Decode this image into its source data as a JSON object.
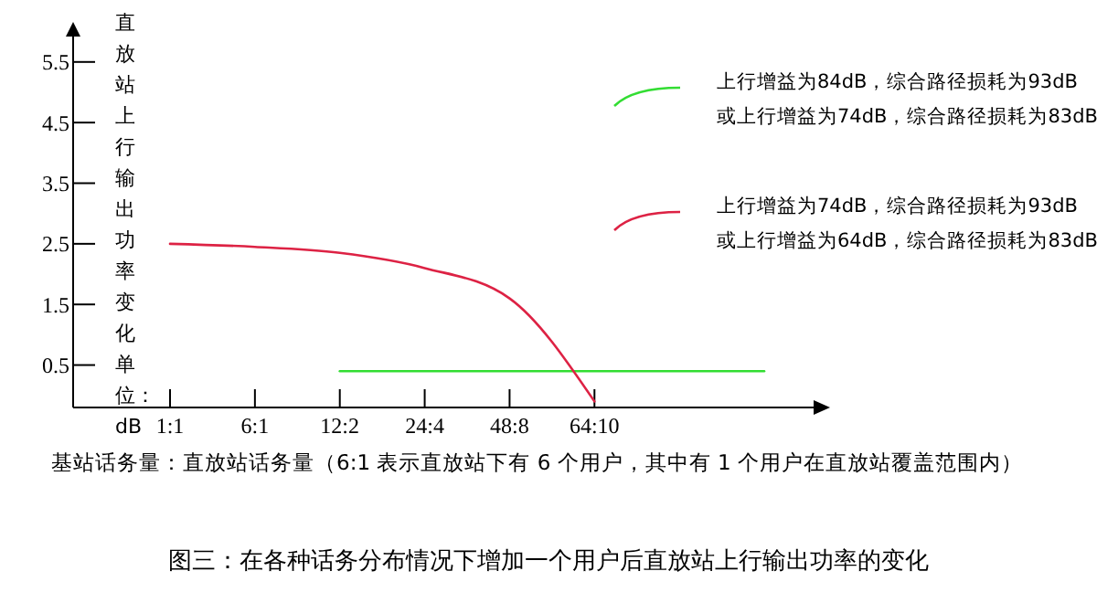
{
  "chart_data": {
    "type": "line",
    "title": "图三：在各种话务分布情况下增加一个用户后直放站上行输出功率的变化",
    "xlabel": "基站话务量：直放站话务量（6:1 表示直放站下有 6 个用户，其中有 1 个用户在直放站覆盖范围内）",
    "ylabel": "直放站上行输出功率变化单位：dB",
    "categories": [
      "1:1",
      "6:1",
      "12:2",
      "24:4",
      "48:8",
      "64:10",
      null,
      null
    ],
    "ylim": [
      -0.2,
      6.1
    ],
    "yticks": [
      5.5,
      4.5,
      3.5,
      2.5,
      1.5,
      0.5
    ],
    "series": [
      {
        "name": "上行增益为84dB，综合路径损耗为93dB\n或上行增益为74dB，综合路径损耗为83dB",
        "color": "#33dd33",
        "values": [
          null,
          null,
          0.4,
          0.4,
          0.4,
          0.4,
          0.4,
          0.4
        ]
      },
      {
        "name": "上行增益为74dB，综合路径损耗为93dB\n或上行增益为64dB，综合路径损耗为83dB",
        "color": "#dd2244",
        "values": [
          2.5,
          2.45,
          2.35,
          2.1,
          1.6,
          -0.1,
          null,
          null
        ]
      }
    ],
    "legend": "right",
    "line_style": "solid"
  }
}
